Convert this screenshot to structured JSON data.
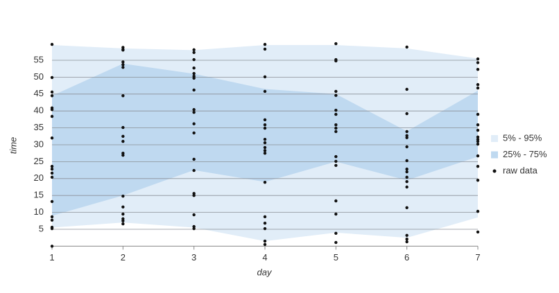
{
  "chart_data": {
    "type": "band",
    "xlabel": "day",
    "ylabel": "time",
    "x": [
      1,
      2,
      3,
      4,
      5,
      6,
      7
    ],
    "xlim": [
      1,
      7
    ],
    "xticks": [
      1,
      2,
      3,
      4,
      5,
      6,
      7
    ],
    "ylim": [
      0,
      60
    ],
    "yticks": [
      5,
      10,
      15,
      20,
      25,
      30,
      35,
      40,
      45,
      50,
      55
    ],
    "grid": true,
    "legend": "right",
    "bands": [
      {
        "name": "5% - 95%",
        "color": "#e1edf8",
        "lower": [
          5.5,
          7,
          5.5,
          1.5,
          4,
          2.5,
          8.5
        ],
        "upper": [
          59.5,
          58.5,
          58,
          59.5,
          59.5,
          58.5,
          55.5
        ]
      },
      {
        "name": "25% - 75%",
        "color": "#bfd9f0",
        "lower": [
          9,
          15,
          22.5,
          19,
          25,
          19.5,
          26.5
        ],
        "upper": [
          44.5,
          54,
          51,
          46.5,
          45,
          34,
          46
        ]
      }
    ],
    "scatter": {
      "name": "raw data",
      "color": "#111111",
      "x": [
        1,
        1,
        1,
        1,
        1,
        1,
        1,
        1,
        1,
        1,
        1,
        1,
        1,
        1,
        1,
        1,
        1,
        1,
        2,
        2,
        2,
        2,
        2,
        2,
        2,
        2,
        2,
        2,
        2,
        2,
        2,
        2,
        2,
        2,
        2,
        2,
        3,
        3,
        3,
        3,
        3,
        3,
        3,
        3,
        3,
        3,
        3,
        3,
        3,
        3,
        3,
        3,
        3,
        3,
        3,
        4,
        4,
        4,
        4,
        4,
        4,
        4,
        4,
        4,
        4,
        4,
        4,
        4,
        4,
        4,
        4,
        4,
        4,
        5,
        5,
        5,
        5,
        5,
        5,
        5,
        5,
        5,
        5,
        5,
        5,
        5,
        5,
        5,
        5,
        5,
        6,
        6,
        6,
        6,
        6,
        6,
        6,
        6,
        6,
        6,
        6,
        6,
        6,
        6,
        6,
        6,
        6,
        7,
        7,
        7,
        7,
        7,
        7,
        7,
        7,
        7,
        7,
        7,
        7,
        7,
        7,
        7,
        7,
        7
      ],
      "y": [
        59.7,
        49.9,
        45.6,
        44.5,
        40.9,
        40.4,
        38.4,
        32.0,
        23.6,
        22.8,
        21.6,
        20.4,
        13.2,
        8.7,
        7.7,
        5.6,
        5.2,
        0,
        58.8,
        58.2,
        58.0,
        54.5,
        53.7,
        52.9,
        44.5,
        35.1,
        32.5,
        31.0,
        27.5,
        26.9,
        14.8,
        11.6,
        9.5,
        8.1,
        7.5,
        6.6,
        58.1,
        57.3,
        55.2,
        52.7,
        51.1,
        50.3,
        49.7,
        46.2,
        40.4,
        39.6,
        36.2,
        33.5,
        25.7,
        22.4,
        15.6,
        15.0,
        9.3,
        5.8,
        5.2,
        59.7,
        58.3,
        50.1,
        45.8,
        37.4,
        35.9,
        34.9,
        31.6,
        30.6,
        29.2,
        28.3,
        27.5,
        18.9,
        8.7,
        6.8,
        5.2,
        1.5,
        0.5,
        59.9,
        55.2,
        54.8,
        45.8,
        44.6,
        40.2,
        39.0,
        35.9,
        34.9,
        33.9,
        26.5,
        25.1,
        23.9,
        13.4,
        9.5,
        3.8,
        1.1,
        58.9,
        46.4,
        39.2,
        33.9,
        32.7,
        32.1,
        29.4,
        25.3,
        22.8,
        22.0,
        20.4,
        19.1,
        17.5,
        11.4,
        3.2,
        2.1,
        1.3,
        55.4,
        54.3,
        52.3,
        47.8,
        46.8,
        39.0,
        35.9,
        34.3,
        32.3,
        31.6,
        31.0,
        30.2,
        26.7,
        23.6,
        19.5,
        10.3,
        4.2
      ]
    }
  }
}
